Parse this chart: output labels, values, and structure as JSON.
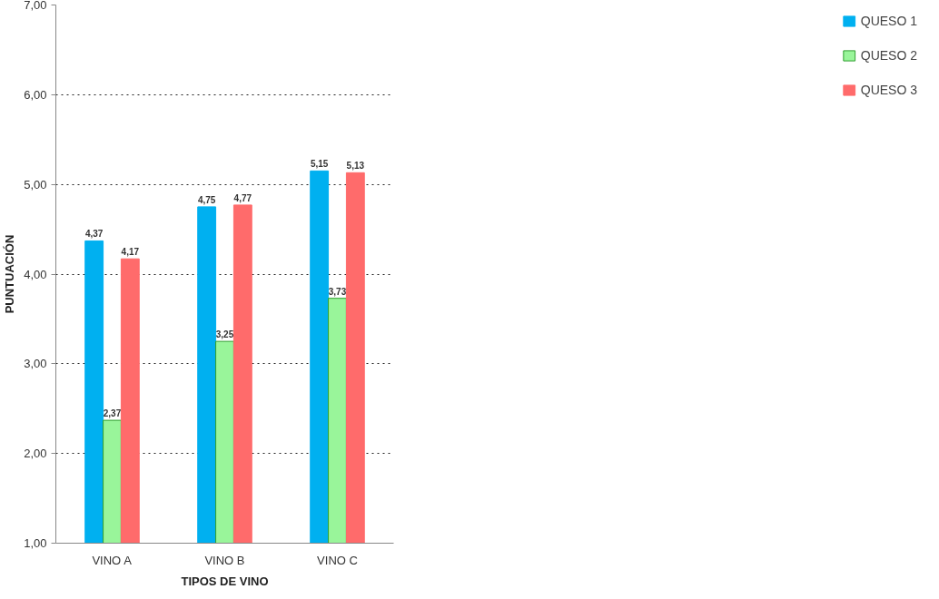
{
  "chart_data": {
    "type": "bar",
    "xlabel": "TIPOS DE VINO",
    "ylabel": "PUNTUACIÓN",
    "categories": [
      "VINO A",
      "VINO B",
      "VINO C"
    ],
    "series": [
      {
        "name": "QUESO 1",
        "color": "#00b0f0",
        "values": [
          4.37,
          4.75,
          5.15
        ],
        "value_labels": [
          "4,37",
          "4,75",
          "5,15"
        ]
      },
      {
        "name": "QUESO 2",
        "color": "#99f59a",
        "values": [
          2.37,
          3.25,
          3.73
        ],
        "value_labels": [
          "2,37",
          "3,25",
          "3,73"
        ]
      },
      {
        "name": "QUESO 3",
        "color": "#ff6b6b",
        "values": [
          4.17,
          4.77,
          5.13
        ],
        "value_labels": [
          "4,17",
          "4,77",
          "5,13"
        ]
      }
    ],
    "ylim": [
      1,
      7
    ],
    "yticks": [
      {
        "value": 1,
        "label": "1,00"
      },
      {
        "value": 2,
        "label": "2,00"
      },
      {
        "value": 3,
        "label": "3,00"
      },
      {
        "value": 4,
        "label": "4,00"
      },
      {
        "value": 5,
        "label": "5,00"
      },
      {
        "value": 6,
        "label": "6,00"
      },
      {
        "value": 7,
        "label": "7,00"
      }
    ],
    "grid": "y",
    "legend": "right",
    "line_style": "dotted"
  }
}
